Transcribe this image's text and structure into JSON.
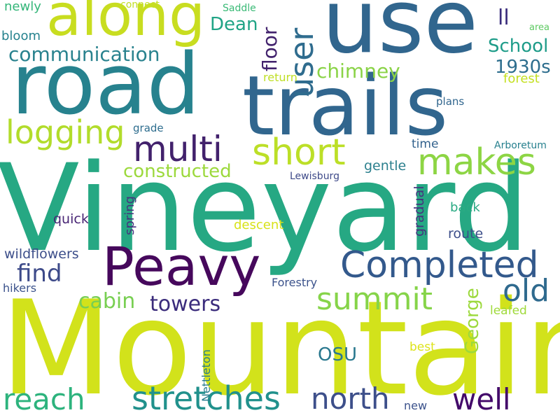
{
  "palette": {
    "dark_purple": "#440154",
    "indigo": "#3e4a89",
    "blue": "#31688e",
    "teal": "#26828e",
    "green_teal": "#1f9e89",
    "green": "#35b779",
    "light_green": "#6ece58",
    "yellow_green": "#b5de2b",
    "yellow": "#d8e219"
  },
  "words": {
    "vineyard": "Vineyard",
    "mountain": "Mountain",
    "trails": "trails",
    "road": "road",
    "use": "use",
    "along": "along",
    "peavy": "Peavy",
    "completed": "Completed",
    "multi": "multi",
    "short": "short",
    "makes": "makes",
    "logging": "logging",
    "stretches": "stretches",
    "summit": "summit",
    "north": "north",
    "reach": "reach",
    "well": "well",
    "old": "old",
    "user": "user",
    "towers": "towers",
    "find": "find",
    "cabin": "cabin",
    "communication": "communication",
    "chimney": "chimney",
    "school": "School",
    "dean": "Dean",
    "floor": "floor",
    "ll": "ll",
    "nineteen_thirties": "1930s",
    "constructed": "constructed",
    "george": "George",
    "osu": "OSU",
    "wildflowers": "wildflowers",
    "descent": "descent",
    "route": "route",
    "back": "back",
    "gentle": "gentle",
    "gradual": "gradual",
    "spring": "spring",
    "quick": "quick",
    "grade": "grade",
    "time": "time",
    "forest": "forest",
    "return": "return",
    "plans": "plans",
    "arboretum": "Arboretum",
    "lewisburg": "Lewisburg",
    "forestry": "Forestry",
    "hikers": "hikers",
    "nettleton": "Nettleton",
    "best": "best",
    "leafed": "leafed",
    "new": "new",
    "bloom": "bloom",
    "newly": "newly",
    "connect": "connect",
    "saddle": "Saddle",
    "area": "area"
  }
}
